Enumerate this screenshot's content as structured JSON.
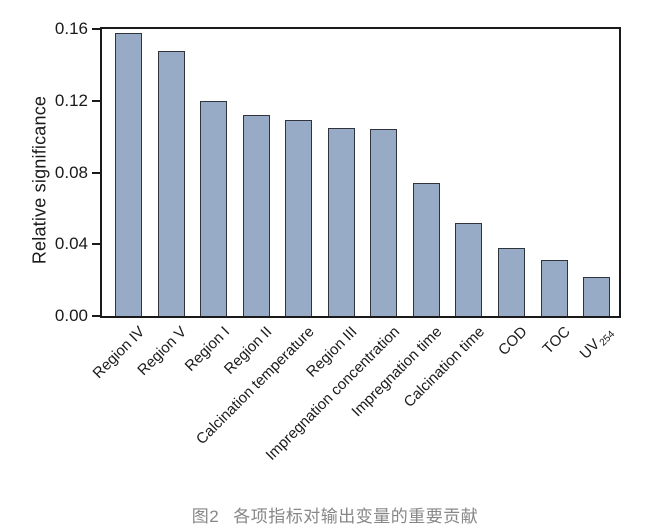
{
  "chart_data": {
    "type": "bar",
    "title": "",
    "xlabel": "",
    "ylabel": "Relative significance",
    "ylim": [
      0,
      0.16
    ],
    "yticks": [
      {
        "value": 0.0,
        "label": "0.00"
      },
      {
        "value": 0.04,
        "label": "0.04"
      },
      {
        "value": 0.08,
        "label": "0.08"
      },
      {
        "value": 0.12,
        "label": "0.12"
      },
      {
        "value": 0.16,
        "label": "0.16"
      }
    ],
    "categories": [
      {
        "label": "Region IV",
        "sub": ""
      },
      {
        "label": "Region V",
        "sub": ""
      },
      {
        "label": "Region I",
        "sub": ""
      },
      {
        "label": "Region II",
        "sub": ""
      },
      {
        "label": "Calcination temperature",
        "sub": ""
      },
      {
        "label": "Region III",
        "sub": ""
      },
      {
        "label": "Impregnation concentration",
        "sub": ""
      },
      {
        "label": "Impregnation time",
        "sub": ""
      },
      {
        "label": "Calcination time",
        "sub": ""
      },
      {
        "label": "COD",
        "sub": ""
      },
      {
        "label": "TOC",
        "sub": ""
      },
      {
        "label": "UV",
        "sub": "254"
      }
    ],
    "values": [
      0.158,
      0.148,
      0.12,
      0.112,
      0.109,
      0.105,
      0.104,
      0.074,
      0.052,
      0.038,
      0.031,
      0.022
    ],
    "x_tick_rotation_deg": 45,
    "grid": false,
    "frame": true,
    "legend": "none",
    "bar_color": "#98abc6",
    "bar_border_color": "#2f343c",
    "axis_color": "#1a1a1a"
  },
  "caption": {
    "prefix": "图2",
    "text": "各项指标对输出变量的重要贡献",
    "color": "#878787"
  }
}
